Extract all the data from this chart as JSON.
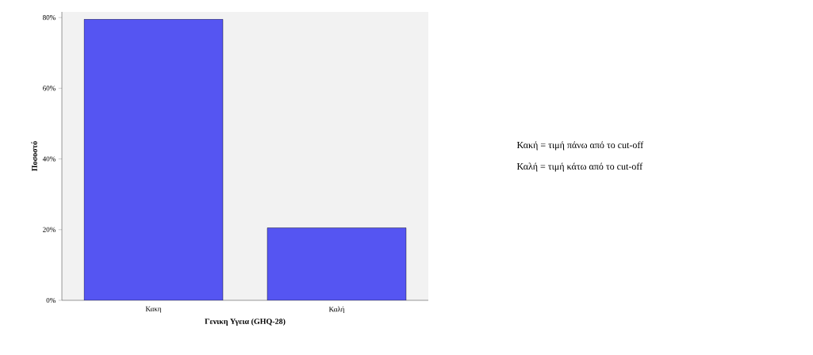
{
  "chart_data": {
    "type": "bar",
    "xlabel": "Γενικη Υγεια (GHQ-28)",
    "ylabel": "Ποσοστό",
    "categories": [
      "Κακη",
      "Καλή"
    ],
    "values": [
      79.5,
      20.5
    ],
    "color": "#5555f2",
    "ylim": [
      0,
      80
    ],
    "yticks": [
      {
        "value": 0,
        "label": "0%"
      },
      {
        "value": 20,
        "label": "20%"
      },
      {
        "value": 40,
        "label": "40%"
      },
      {
        "value": 60,
        "label": "60%"
      },
      {
        "value": 80,
        "label": "80%"
      }
    ],
    "grid": false,
    "annotations": [
      "Κακή = τιμή πάνω από το cut-off",
      "Καλή = τιμή κάτω από το cut-off"
    ]
  }
}
